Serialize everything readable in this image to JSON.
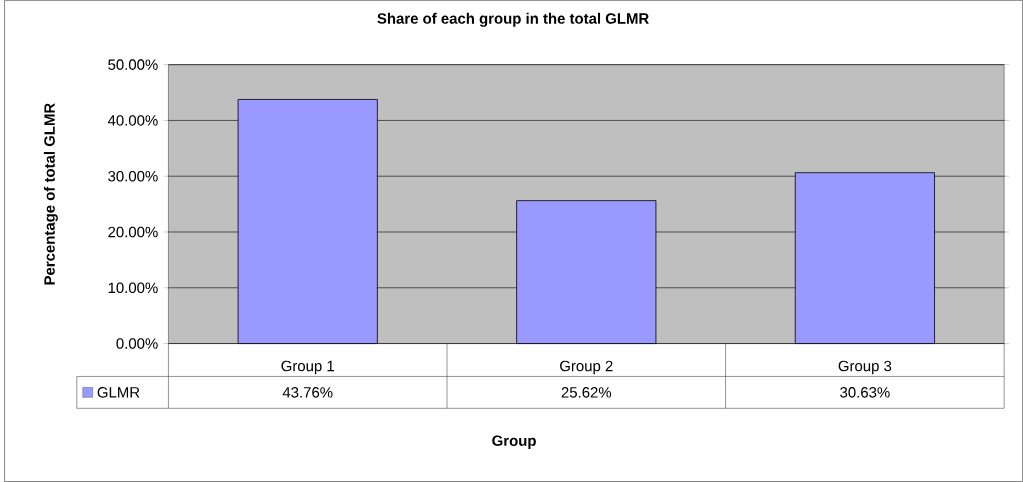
{
  "chart_data": {
    "type": "bar",
    "title": "Share of each group in the total GLMR",
    "xlabel": "Group",
    "ylabel": "Percentage of total GLMR",
    "categories": [
      "Group 1",
      "Group 2",
      "Group 3"
    ],
    "series": [
      {
        "name": "GLMR",
        "color": "#9999ff",
        "values": [
          43.76,
          25.62,
          30.63
        ]
      }
    ],
    "value_labels": [
      "43.76%",
      "25.62%",
      "30.63%"
    ],
    "ylim": [
      0,
      50
    ],
    "yticks": [
      {
        "value": 0,
        "label": "0.00%"
      },
      {
        "value": 10,
        "label": "10.00%"
      },
      {
        "value": 20,
        "label": "20.00%"
      },
      {
        "value": 30,
        "label": "30.00%"
      },
      {
        "value": 40,
        "label": "40.00%"
      },
      {
        "value": 50,
        "label": "50.00%"
      }
    ],
    "grid": "y",
    "legend": "bottom left"
  }
}
